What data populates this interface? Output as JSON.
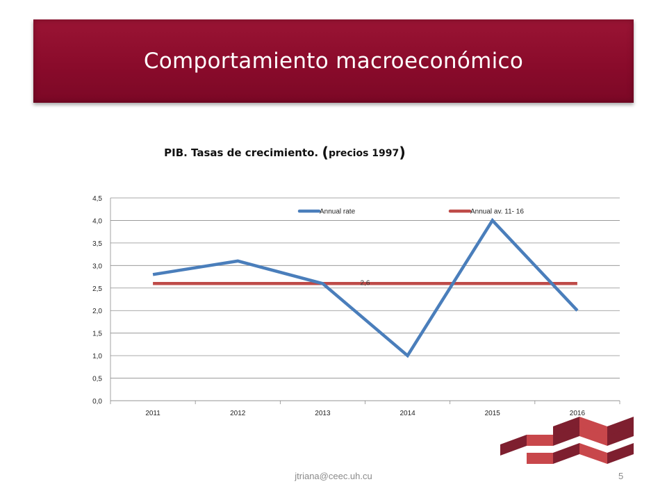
{
  "slide": {
    "title": "Comportamiento macroeconómico",
    "chart_title_main": "PIB. Tasas de crecimiento.",
    "chart_title_sub": "precios 1997",
    "footer_email": "jtriana@ceec.uh.cu",
    "page_number": "5"
  },
  "colors": {
    "banner": "#8a0b2b",
    "series_annual_rate": "#4a7ebb",
    "series_annual_avg": "#be4b48",
    "logo_dark": "#7e1f2f",
    "logo_light": "#c8474b"
  },
  "chart_data": {
    "type": "line",
    "title": "PIB. Tasas de crecimiento. (precios 1997)",
    "xlabel": "",
    "ylabel": "",
    "categories": [
      "2011",
      "2012",
      "2013",
      "2014",
      "2015",
      "2016"
    ],
    "ylim": [
      0,
      4.5
    ],
    "y_ticks": [
      "0,0",
      "0,5",
      "1,0",
      "1,5",
      "2,0",
      "2,5",
      "3,0",
      "3,5",
      "4,0",
      "4,5"
    ],
    "grid": true,
    "legend_position": "top",
    "series": [
      {
        "name": "Annual rate",
        "values": [
          2.8,
          3.1,
          2.6,
          1.0,
          4.0,
          2.0
        ]
      },
      {
        "name": "Annual av. 11- 16",
        "values": [
          2.6,
          2.6,
          2.6,
          2.6,
          2.6,
          2.6
        ]
      }
    ],
    "annotations": [
      {
        "text": "2,6",
        "series": "Annual av. 11- 16",
        "category": "2014"
      }
    ]
  }
}
